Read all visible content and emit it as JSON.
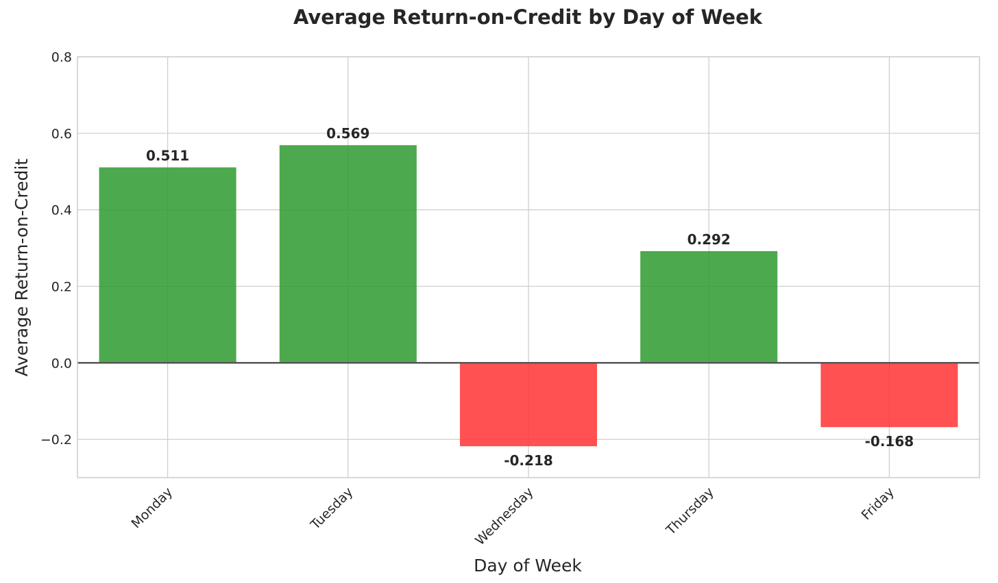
{
  "chart_data": {
    "type": "bar",
    "title": "Average Return-on-Credit by Day of Week",
    "xlabel": "Day of Week",
    "ylabel": "Average Return-on-Credit",
    "categories": [
      "Monday",
      "Tuesday",
      "Wednesday",
      "Thursday",
      "Friday"
    ],
    "values": [
      0.511,
      0.569,
      -0.218,
      0.292,
      -0.168
    ],
    "value_labels": [
      "0.511",
      "0.569",
      "-0.218",
      "0.292",
      "-0.168"
    ],
    "ylim": [
      -0.3,
      0.8
    ],
    "yticks": [
      -0.2,
      0.0,
      0.2,
      0.4,
      0.6,
      0.8
    ],
    "ytick_labels": [
      "−0.2",
      "0.0",
      "0.2",
      "0.4",
      "0.6",
      "0.8"
    ],
    "grid": true,
    "legend": "none",
    "colors": {
      "positive": "#2e9a2e",
      "negative": "#ff3333"
    }
  }
}
